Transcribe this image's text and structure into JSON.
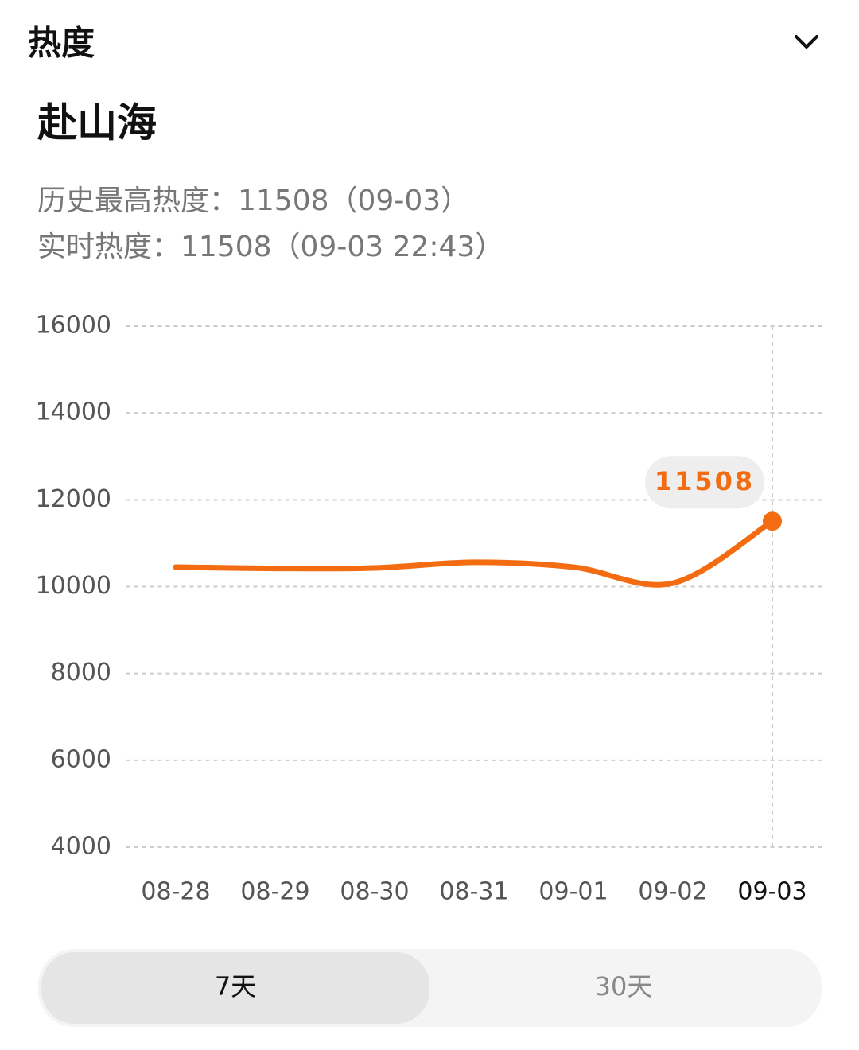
{
  "header": {
    "title": "热度"
  },
  "topic": "赴山海",
  "stats": [
    "历史最高热度：11508（09-03）",
    "实时热度：11508（09-03 22:43）"
  ],
  "chart_data": {
    "type": "line",
    "categories": [
      "08-28",
      "08-29",
      "08-30",
      "08-31",
      "09-01",
      "09-02",
      "09-03"
    ],
    "values": [
      10450,
      10420,
      10430,
      10560,
      10450,
      10080,
      11508
    ],
    "color": "#f36c11",
    "ylim": [
      4000,
      16000
    ],
    "yticks": [
      4000,
      6000,
      8000,
      10000,
      12000,
      14000,
      16000
    ],
    "grid": true
  },
  "tabs": [
    "7天",
    "30天"
  ]
}
